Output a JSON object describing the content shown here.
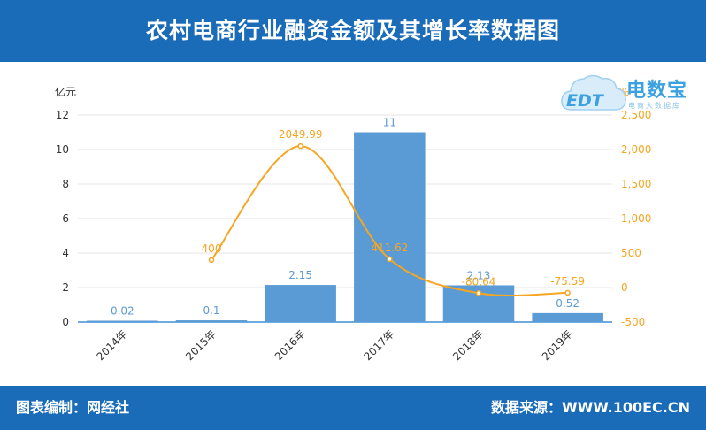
{
  "header": {
    "title": "农村电商行业融资金额及其增长率数据图"
  },
  "footer": {
    "left": "图表编制：网经社",
    "right": "数据来源：WWW.100EC.CN"
  },
  "logo": {
    "name": "电数宝",
    "sub": "电商大数据库",
    "mark": "EDT"
  },
  "colors": {
    "header_bg": "#1a6bb8",
    "bar": "#5b9bd5",
    "line": "#f5a623",
    "bar_label": "#5b9bd5",
    "line_label": "#f5a623"
  },
  "chart_data": {
    "type": "bar",
    "categories": [
      "2014年",
      "2015年",
      "2016年",
      "2017年",
      "2018年",
      "2019年"
    ],
    "series": [
      {
        "type": "bar",
        "axis": "left",
        "values": [
          0.02,
          0.1,
          2.15,
          11,
          2.13,
          0.52
        ],
        "labels": [
          "0.02",
          "0.1",
          "2.15",
          "11",
          "2.13",
          "0.52"
        ]
      },
      {
        "type": "line",
        "axis": "right",
        "values": [
          null,
          400,
          2049.99,
          411.62,
          -80.64,
          -75.59
        ],
        "labels": [
          "",
          "400",
          "2049.99",
          "411.62",
          "-80.64",
          "-75.59"
        ]
      }
    ],
    "y_left": {
      "label": "亿元",
      "min": 0,
      "max": 12,
      "ticks": [
        "0",
        "2",
        "4",
        "6",
        "8",
        "10",
        "12"
      ]
    },
    "y_right": {
      "label": "%",
      "min": -500,
      "max": 2500,
      "ticks": [
        "-500",
        "0",
        "500",
        "1,000",
        "1,500",
        "2,000",
        "2,500"
      ]
    },
    "grid": true
  }
}
